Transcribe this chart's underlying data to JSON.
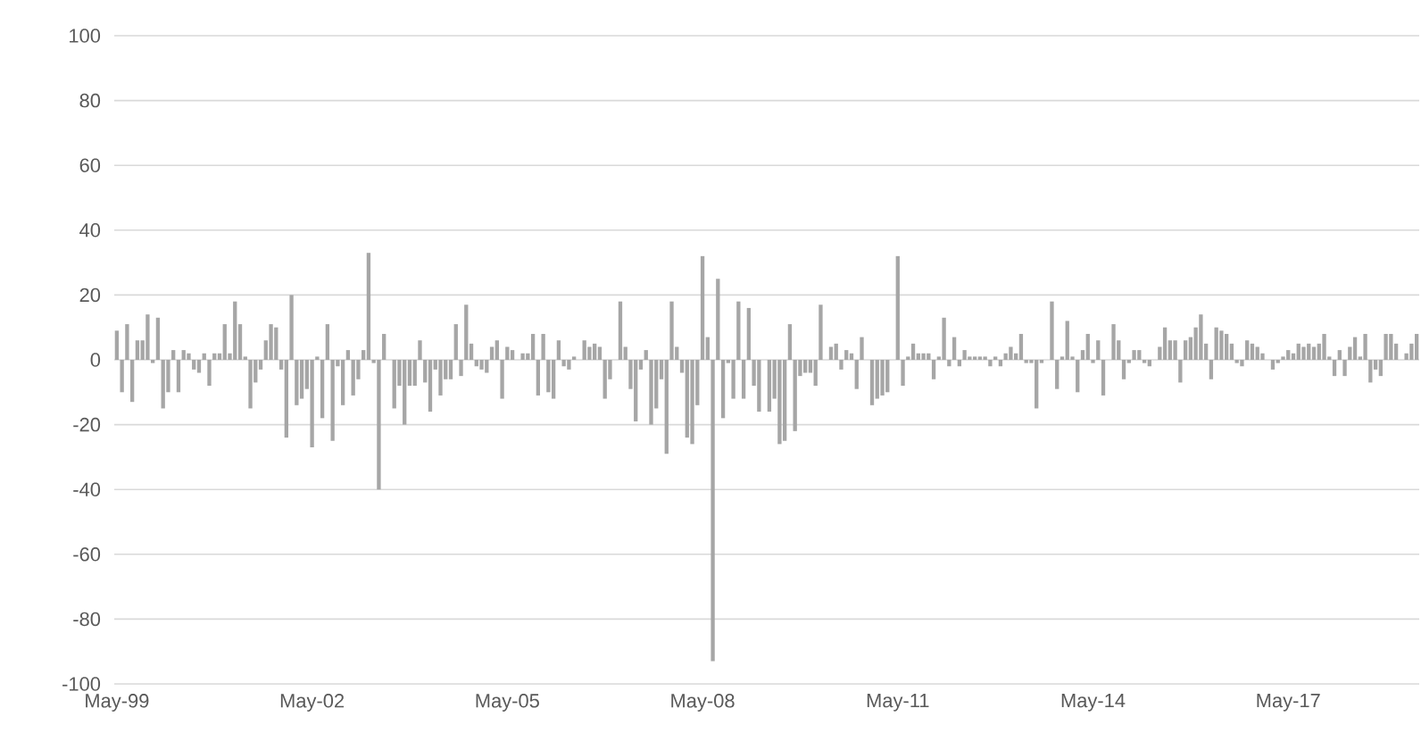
{
  "chart_data": {
    "type": "bar",
    "color": "#a6a6a6",
    "grid": "y",
    "ylim": [
      -100,
      100
    ],
    "yticks": [
      -100,
      -80,
      -60,
      -40,
      -20,
      0,
      20,
      40,
      60,
      80,
      100
    ],
    "categories": [
      "May-99",
      null,
      null,
      null,
      null,
      null,
      null,
      null,
      null,
      null,
      null,
      null,
      null,
      null,
      null,
      null,
      null,
      null,
      null,
      null,
      null,
      null,
      null,
      null,
      null,
      null,
      null,
      null,
      null,
      null,
      null,
      null,
      null,
      null,
      null,
      null,
      null,
      null,
      "May-02",
      null,
      null,
      null,
      null,
      null,
      null,
      null,
      null,
      null,
      null,
      null,
      null,
      null,
      null,
      null,
      null,
      null,
      null,
      null,
      null,
      null,
      null,
      null,
      null,
      null,
      null,
      null,
      null,
      null,
      null,
      null,
      null,
      null,
      null,
      null,
      null,
      null,
      "May-05",
      null,
      null,
      null,
      null,
      null,
      null,
      null,
      null,
      null,
      null,
      null,
      null,
      null,
      null,
      null,
      null,
      null,
      null,
      null,
      null,
      null,
      null,
      null,
      null,
      null,
      null,
      null,
      null,
      null,
      null,
      null,
      null,
      null,
      null,
      null,
      null,
      null,
      "May-08",
      null,
      null,
      null,
      null,
      null,
      null,
      null,
      null,
      null,
      null,
      null,
      null,
      null,
      null,
      null,
      null,
      null,
      null,
      null,
      null,
      null,
      null,
      null,
      null,
      null,
      null,
      null,
      null,
      null,
      null,
      null,
      null,
      null,
      null,
      null,
      null,
      null,
      "May-11",
      null,
      null,
      null,
      null,
      null,
      null,
      null,
      null,
      null,
      null,
      null,
      null,
      null,
      null,
      null,
      null,
      null,
      null,
      null,
      null,
      null,
      null,
      null,
      null,
      null,
      null,
      null,
      null,
      null,
      null,
      null,
      null,
      null,
      null,
      null,
      null,
      null,
      "May-14",
      null,
      null,
      null,
      null,
      null,
      null,
      null,
      null,
      null,
      null,
      null,
      null,
      null,
      null,
      null,
      null,
      null,
      null,
      null,
      null,
      null,
      null,
      null,
      null,
      null,
      null,
      null,
      null,
      null,
      null,
      null,
      null,
      null,
      null,
      null,
      null,
      null,
      "May-17",
      null,
      null,
      null,
      null,
      null,
      null,
      null,
      null,
      null,
      null,
      null,
      null,
      null,
      null,
      null,
      null,
      null,
      null,
      null,
      null,
      null,
      null,
      null,
      null,
      null
    ],
    "values": [
      9,
      -10,
      11,
      -13,
      6,
      6,
      14,
      -1,
      13,
      -15,
      -10,
      3,
      -10,
      3,
      2,
      -3,
      -4,
      2,
      -8,
      2,
      2,
      11,
      2,
      18,
      11,
      1,
      -15,
      -7,
      -3,
      6,
      11,
      10,
      -3,
      -24,
      20,
      -14,
      -12,
      -9,
      -27,
      1,
      -18,
      11,
      -25,
      -2,
      -14,
      3,
      -11,
      -6,
      3,
      33,
      -1,
      -40,
      8,
      0,
      -15,
      -8,
      -20,
      -8,
      -8,
      6,
      -7,
      -16,
      -3,
      -11,
      -6,
      -6,
      11,
      -5,
      17,
      5,
      -2,
      -3,
      -4,
      4,
      6,
      -12,
      4,
      3,
      0,
      2,
      2,
      8,
      -11,
      8,
      -10,
      -12,
      6,
      -2,
      -3,
      1,
      0,
      6,
      4,
      5,
      4,
      -12,
      -6,
      0,
      18,
      4,
      -9,
      -19,
      -3,
      3,
      -20,
      -15,
      -6,
      -29,
      18,
      4,
      -4,
      -24,
      -26,
      -14,
      32,
      7,
      -93,
      25,
      -18,
      -1,
      -12,
      18,
      -12,
      16,
      -8,
      -16,
      0,
      -16,
      -12,
      -26,
      -25,
      11,
      -22,
      -5,
      -4,
      -4,
      -8,
      17,
      0,
      4,
      5,
      -3,
      3,
      2,
      -9,
      7,
      0,
      -14,
      -12,
      -11,
      -10,
      0,
      32,
      -8,
      1,
      5,
      2,
      2,
      2,
      -6,
      1,
      13,
      -2,
      7,
      -2,
      3,
      1,
      1,
      1,
      1,
      -2,
      1,
      -2,
      2,
      4,
      2,
      8,
      -1,
      -1,
      -15,
      -1,
      0,
      18,
      -9,
      1,
      12,
      1,
      -10,
      3,
      8,
      -1,
      6,
      -11,
      0,
      11,
      6,
      -6,
      -1,
      3,
      3,
      -1,
      -2,
      0,
      4,
      10,
      6,
      6,
      -7,
      6,
      7,
      10,
      14,
      5,
      -6,
      10,
      9,
      8,
      5,
      -1,
      -2,
      6,
      5,
      4,
      2,
      0,
      -3,
      -1,
      1,
      3,
      2,
      5,
      4,
      5,
      4,
      5,
      8,
      1,
      -5,
      3,
      -5,
      4,
      7,
      1,
      8,
      -7,
      -3,
      -5,
      8,
      8,
      5,
      0,
      2,
      5,
      8
    ]
  }
}
